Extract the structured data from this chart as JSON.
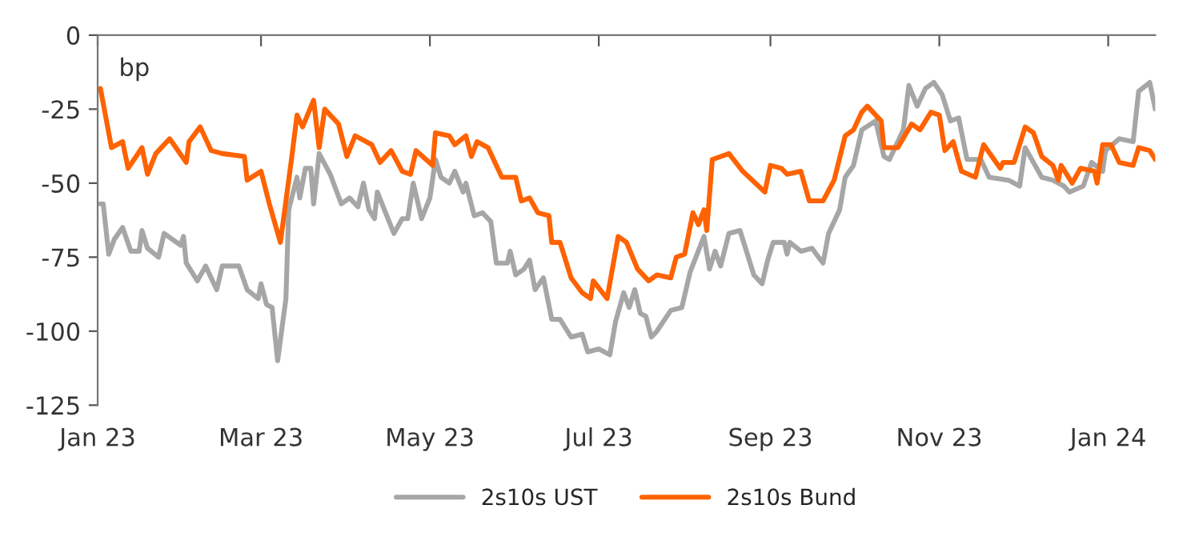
{
  "chart_data": {
    "type": "line",
    "annotations": [
      "bp"
    ],
    "xlim": [
      "2023-01-01",
      "2024-01-18"
    ],
    "xticks": [
      {
        "value": "2023-01-01",
        "label": "Jan 23"
      },
      {
        "value": "2023-03-01",
        "label": "Mar 23"
      },
      {
        "value": "2023-05-01",
        "label": "May 23"
      },
      {
        "value": "2023-07-01",
        "label": "Jul 23"
      },
      {
        "value": "2023-09-01",
        "label": "Sep 23"
      },
      {
        "value": "2023-11-01",
        "label": "Nov 23"
      },
      {
        "value": "2024-01-01",
        "label": "Jan 24"
      }
    ],
    "ylim": [
      -125,
      0
    ],
    "yticks": [
      0,
      {
        "value": -25,
        "label": "-25"
      },
      {
        "value": -50,
        "label": "-50"
      },
      {
        "value": -75,
        "label": "-75"
      },
      {
        "value": -100,
        "label": "-100"
      },
      {
        "value": -125,
        "label": "-125"
      }
    ],
    "grid": false,
    "legend": "bottom",
    "line_style": "solid",
    "marker": "none",
    "series": [
      {
        "name": "2s10s UST",
        "color": "#a6a6a6",
        "x": [
          "2023-01-02",
          "2023-01-03",
          "2023-01-05",
          "2023-01-07",
          "2023-01-10",
          "2023-01-13",
          "2023-01-16",
          "2023-01-17",
          "2023-01-19",
          "2023-01-23",
          "2023-01-25",
          "2023-01-31",
          "2023-02-01",
          "2023-02-02",
          "2023-02-06",
          "2023-02-09",
          "2023-02-13",
          "2023-02-15",
          "2023-02-21",
          "2023-02-24",
          "2023-02-28",
          "2023-03-01",
          "2023-03-03",
          "2023-03-05",
          "2023-03-07",
          "2023-03-10",
          "2023-03-11",
          "2023-03-14",
          "2023-03-15",
          "2023-03-17",
          "2023-03-19",
          "2023-03-20",
          "2023-03-22",
          "2023-03-26",
          "2023-03-30",
          "2023-04-02",
          "2023-04-05",
          "2023-04-07",
          "2023-04-09",
          "2023-04-11",
          "2023-04-12",
          "2023-04-15",
          "2023-04-18",
          "2023-04-21",
          "2023-04-23",
          "2023-04-25",
          "2023-04-28",
          "2023-05-01",
          "2023-05-03",
          "2023-05-05",
          "2023-05-08",
          "2023-05-10",
          "2023-05-13",
          "2023-05-14",
          "2023-05-17",
          "2023-05-20",
          "2023-05-23",
          "2023-05-25",
          "2023-05-29",
          "2023-05-30",
          "2023-06-01",
          "2023-06-04",
          "2023-06-06",
          "2023-06-08",
          "2023-06-11",
          "2023-06-14",
          "2023-06-17",
          "2023-06-21",
          "2023-06-25",
          "2023-06-27",
          "2023-07-01",
          "2023-07-05",
          "2023-07-07",
          "2023-07-10",
          "2023-07-12",
          "2023-07-14",
          "2023-07-16",
          "2023-07-18",
          "2023-07-20",
          "2023-07-22",
          "2023-07-27",
          "2023-07-31",
          "2023-08-03",
          "2023-08-08",
          "2023-08-10",
          "2023-08-12",
          "2023-08-14",
          "2023-08-17",
          "2023-08-21",
          "2023-08-26",
          "2023-08-29",
          "2023-08-31",
          "2023-09-02",
          "2023-09-06",
          "2023-09-07",
          "2023-09-08",
          "2023-09-12",
          "2023-09-16",
          "2023-09-20",
          "2023-09-22",
          "2023-09-26",
          "2023-09-28",
          "2023-10-01",
          "2023-10-04",
          "2023-10-09",
          "2023-10-12",
          "2023-10-14",
          "2023-10-19",
          "2023-10-21",
          "2023-10-24",
          "2023-10-27",
          "2023-10-30",
          "2023-11-02",
          "2023-11-05",
          "2023-11-08",
          "2023-11-11",
          "2023-11-16",
          "2023-11-19",
          "2023-11-26",
          "2023-11-30",
          "2023-12-02",
          "2023-12-08",
          "2023-12-12",
          "2023-12-16",
          "2023-12-18",
          "2023-12-23",
          "2023-12-26",
          "2023-12-30",
          "2023-12-31",
          "2024-01-05",
          "2024-01-10",
          "2024-01-12",
          "2024-01-16",
          "2024-01-18"
        ],
        "values": [
          -57,
          -57,
          -74,
          -69,
          -65,
          -73,
          -73,
          -66,
          -72,
          -75,
          -67,
          -71,
          -68,
          -77,
          -83,
          -78,
          -86,
          -78,
          -78,
          -86,
          -89,
          -84,
          -91,
          -92,
          -110,
          -89,
          -59,
          -48,
          -55,
          -45,
          -45,
          -57,
          -40,
          -47,
          -57,
          -55,
          -58,
          -50,
          -59,
          -62,
          -53,
          -60,
          -67,
          -62,
          -62,
          -50,
          -62,
          -55,
          -42,
          -48,
          -50,
          -46,
          -53,
          -50,
          -61,
          -60,
          -63,
          -77,
          -77,
          -73,
          -81,
          -79,
          -76,
          -86,
          -82,
          -96,
          -96,
          -102,
          -101,
          -107,
          -106,
          -108,
          -97,
          -87,
          -92,
          -86,
          -94,
          -95,
          -102,
          -100,
          -93,
          -92,
          -80,
          -68,
          -79,
          -73,
          -78,
          -67,
          -66,
          -81,
          -84,
          -76,
          -70,
          -70,
          -74,
          -70,
          -73,
          -72,
          -77,
          -67,
          -59,
          -48,
          -44,
          -32,
          -29,
          -41,
          -42,
          -32,
          -17,
          -24,
          -18,
          -16,
          -20,
          -29,
          -28,
          -42,
          -42,
          -48,
          -49,
          -51,
          -38,
          -48,
          -49,
          -51,
          -53,
          -51,
          -43,
          -46,
          -39,
          -35,
          -36,
          -19,
          -16,
          -25
        ]
      },
      {
        "name": "2s10s Bund",
        "color": "#ff6200",
        "x": [
          "2023-01-02",
          "2023-01-06",
          "2023-01-10",
          "2023-01-12",
          "2023-01-17",
          "2023-01-19",
          "2023-01-22",
          "2023-01-27",
          "2023-02-02",
          "2023-02-03",
          "2023-02-07",
          "2023-02-11",
          "2023-02-15",
          "2023-02-23",
          "2023-02-24",
          "2023-03-01",
          "2023-03-04",
          "2023-03-08",
          "2023-03-12",
          "2023-03-14",
          "2023-03-16",
          "2023-03-20",
          "2023-03-22",
          "2023-03-24",
          "2023-03-29",
          "2023-04-01",
          "2023-04-04",
          "2023-04-10",
          "2023-04-13",
          "2023-04-17",
          "2023-04-21",
          "2023-04-24",
          "2023-04-26",
          "2023-05-02",
          "2023-05-03",
          "2023-05-08",
          "2023-05-10",
          "2023-05-14",
          "2023-05-16",
          "2023-05-18",
          "2023-05-22",
          "2023-05-27",
          "2023-06-01",
          "2023-06-03",
          "2023-06-06",
          "2023-06-09",
          "2023-06-13",
          "2023-06-14",
          "2023-06-17",
          "2023-06-21",
          "2023-06-25",
          "2023-06-28",
          "2023-06-29",
          "2023-07-04",
          "2023-07-08",
          "2023-07-11",
          "2023-07-15",
          "2023-07-19",
          "2023-07-22",
          "2023-07-27",
          "2023-07-29",
          "2023-08-01",
          "2023-08-04",
          "2023-08-06",
          "2023-08-08",
          "2023-08-09",
          "2023-08-11",
          "2023-08-17",
          "2023-08-22",
          "2023-08-30",
          "2023-09-01",
          "2023-09-05",
          "2023-09-07",
          "2023-09-12",
          "2023-09-15",
          "2023-09-20",
          "2023-09-24",
          "2023-09-28",
          "2023-10-01",
          "2023-10-04",
          "2023-10-06",
          "2023-10-11",
          "2023-10-12",
          "2023-10-17",
          "2023-10-22",
          "2023-10-25",
          "2023-10-29",
          "2023-11-01",
          "2023-11-03",
          "2023-11-06",
          "2023-11-09",
          "2023-11-14",
          "2023-11-17",
          "2023-11-23",
          "2023-11-24",
          "2023-11-28",
          "2023-12-02",
          "2023-12-05",
          "2023-12-08",
          "2023-12-12",
          "2023-12-14",
          "2023-12-15",
          "2023-12-19",
          "2023-12-22",
          "2023-12-27",
          "2023-12-28",
          "2023-12-30",
          "2024-01-02",
          "2024-01-05",
          "2024-01-10",
          "2024-01-12",
          "2024-01-16",
          "2024-01-18"
        ],
        "values": [
          -18,
          -38,
          -36,
          -45,
          -38,
          -47,
          -40,
          -35,
          -43,
          -36,
          -31,
          -39,
          -40,
          -41,
          -49,
          -46,
          -57,
          -70,
          -42,
          -27,
          -31,
          -22,
          -38,
          -25,
          -30,
          -41,
          -34,
          -37,
          -43,
          -39,
          -46,
          -47,
          -39,
          -44,
          -33,
          -34,
          -37,
          -34,
          -41,
          -36,
          -38,
          -48,
          -48,
          -56,
          -55,
          -60,
          -61,
          -70,
          -70,
          -82,
          -87,
          -89,
          -83,
          -89,
          -68,
          -70,
          -79,
          -83,
          -81,
          -82,
          -75,
          -74,
          -60,
          -64,
          -59,
          -66,
          -42,
          -40,
          -46,
          -53,
          -44,
          -45,
          -47,
          -46,
          -56,
          -56,
          -49,
          -34,
          -32,
          -26,
          -24,
          -29,
          -38,
          -38,
          -30,
          -32,
          -26,
          -27,
          -39,
          -36,
          -46,
          -48,
          -37,
          -45,
          -43,
          -43,
          -31,
          -33,
          -41,
          -44,
          -49,
          -44,
          -50,
          -45,
          -46,
          -50,
          -37,
          -37,
          -43,
          -44,
          -38,
          -39,
          -42
        ]
      }
    ]
  }
}
